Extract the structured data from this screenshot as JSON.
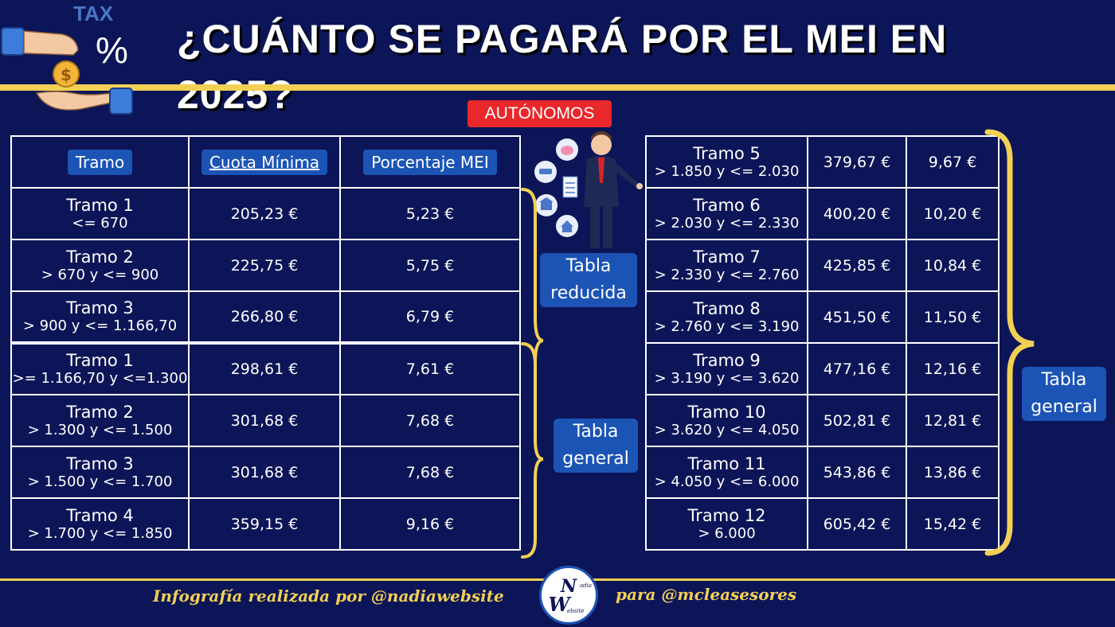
{
  "header": {
    "title": "¿CUÁNTO SE PAGARÁ POR EL MEI EN 2025?",
    "tax_word": "TAX",
    "tax_symbol": "%",
    "coin_symbol": "$"
  },
  "badge": "AUTÓNOMOS",
  "table_headers": {
    "tramo": "Tramo",
    "cuota": "Cuota Mínima",
    "porcentaje": "Porcentaje MEI"
  },
  "left_rows": [
    {
      "name": "Tramo 1",
      "range": "<= 670",
      "cuota": "205,23 €",
      "mei": "5,23 €"
    },
    {
      "name": "Tramo 2",
      "range": "> 670 y <= 900",
      "cuota": "225,75 €",
      "mei": "5,75 €"
    },
    {
      "name": "Tramo 3",
      "range": "> 900 y <= 1.166,70",
      "cuota": "266,80 €",
      "mei": "6,79 €"
    },
    {
      "name": "Tramo 1",
      "range": ">= 1.166,70 y <=1.300",
      "cuota": "298,61 €",
      "mei": "7,61 €"
    },
    {
      "name": "Tramo 2",
      "range": "> 1.300 y <= 1.500",
      "cuota": "301,68 €",
      "mei": "7,68 €"
    },
    {
      "name": "Tramo 3",
      "range": "> 1.500 y <= 1.700",
      "cuota": "301,68 €",
      "mei": "7,68 €"
    },
    {
      "name": "Tramo 4",
      "range": "> 1.700 y <= 1.850",
      "cuota": "359,15 €",
      "mei": "9,16 €"
    }
  ],
  "right_rows": [
    {
      "name": "Tramo 5",
      "range": "> 1.850 y <= 2.030",
      "cuota": "379,67 €",
      "mei": "9,67 €"
    },
    {
      "name": "Tramo 6",
      "range": "> 2.030 y <= 2.330",
      "cuota": "400,20 €",
      "mei": "10,20 €"
    },
    {
      "name": "Tramo 7",
      "range": "> 2.330 y <= 2.760",
      "cuota": "425,85 €",
      "mei": "10,84 €"
    },
    {
      "name": "Tramo 8",
      "range": "> 2.760 y <= 3.190",
      "cuota": "451,50 €",
      "mei": "11,50 €"
    },
    {
      "name": "Tramo 9",
      "range": "> 3.190 y <= 3.620",
      "cuota": "477,16 €",
      "mei": "12,16 €"
    },
    {
      "name": "Tramo 10",
      "range": "> 3.620 y <= 4.050",
      "cuota": "502,81 €",
      "mei": "12,81 €"
    },
    {
      "name": "Tramo 11",
      "range": "> 4.050 y <= 6.000",
      "cuota": "543,86 €",
      "mei": "13,86 €"
    },
    {
      "name": "Tramo 12",
      "range": "> 6.000",
      "cuota": "605,42 €",
      "mei": "15,42 €"
    }
  ],
  "labels": {
    "reducida": "Tabla reducida",
    "general_left": "Tabla general",
    "general_right": "Tabla general"
  },
  "footer": {
    "left": "Infografía realizada por @nadiawebsite",
    "right": "para @mcleasesores",
    "logo_main": "W",
    "logo_top": "N",
    "logo_small_top": "adia",
    "logo_small_bottom": "ebsite"
  },
  "colors": {
    "background": "#0c1557",
    "accent_yellow": "#f2d054",
    "badge_red": "#e8282b",
    "pill_blue": "#1c54b5"
  },
  "icons": [
    "hand-coin-icon",
    "piggy-bank-icon",
    "car-icon",
    "bank-icon",
    "house-icon",
    "businessman-icon",
    "tax-document-icon"
  ]
}
